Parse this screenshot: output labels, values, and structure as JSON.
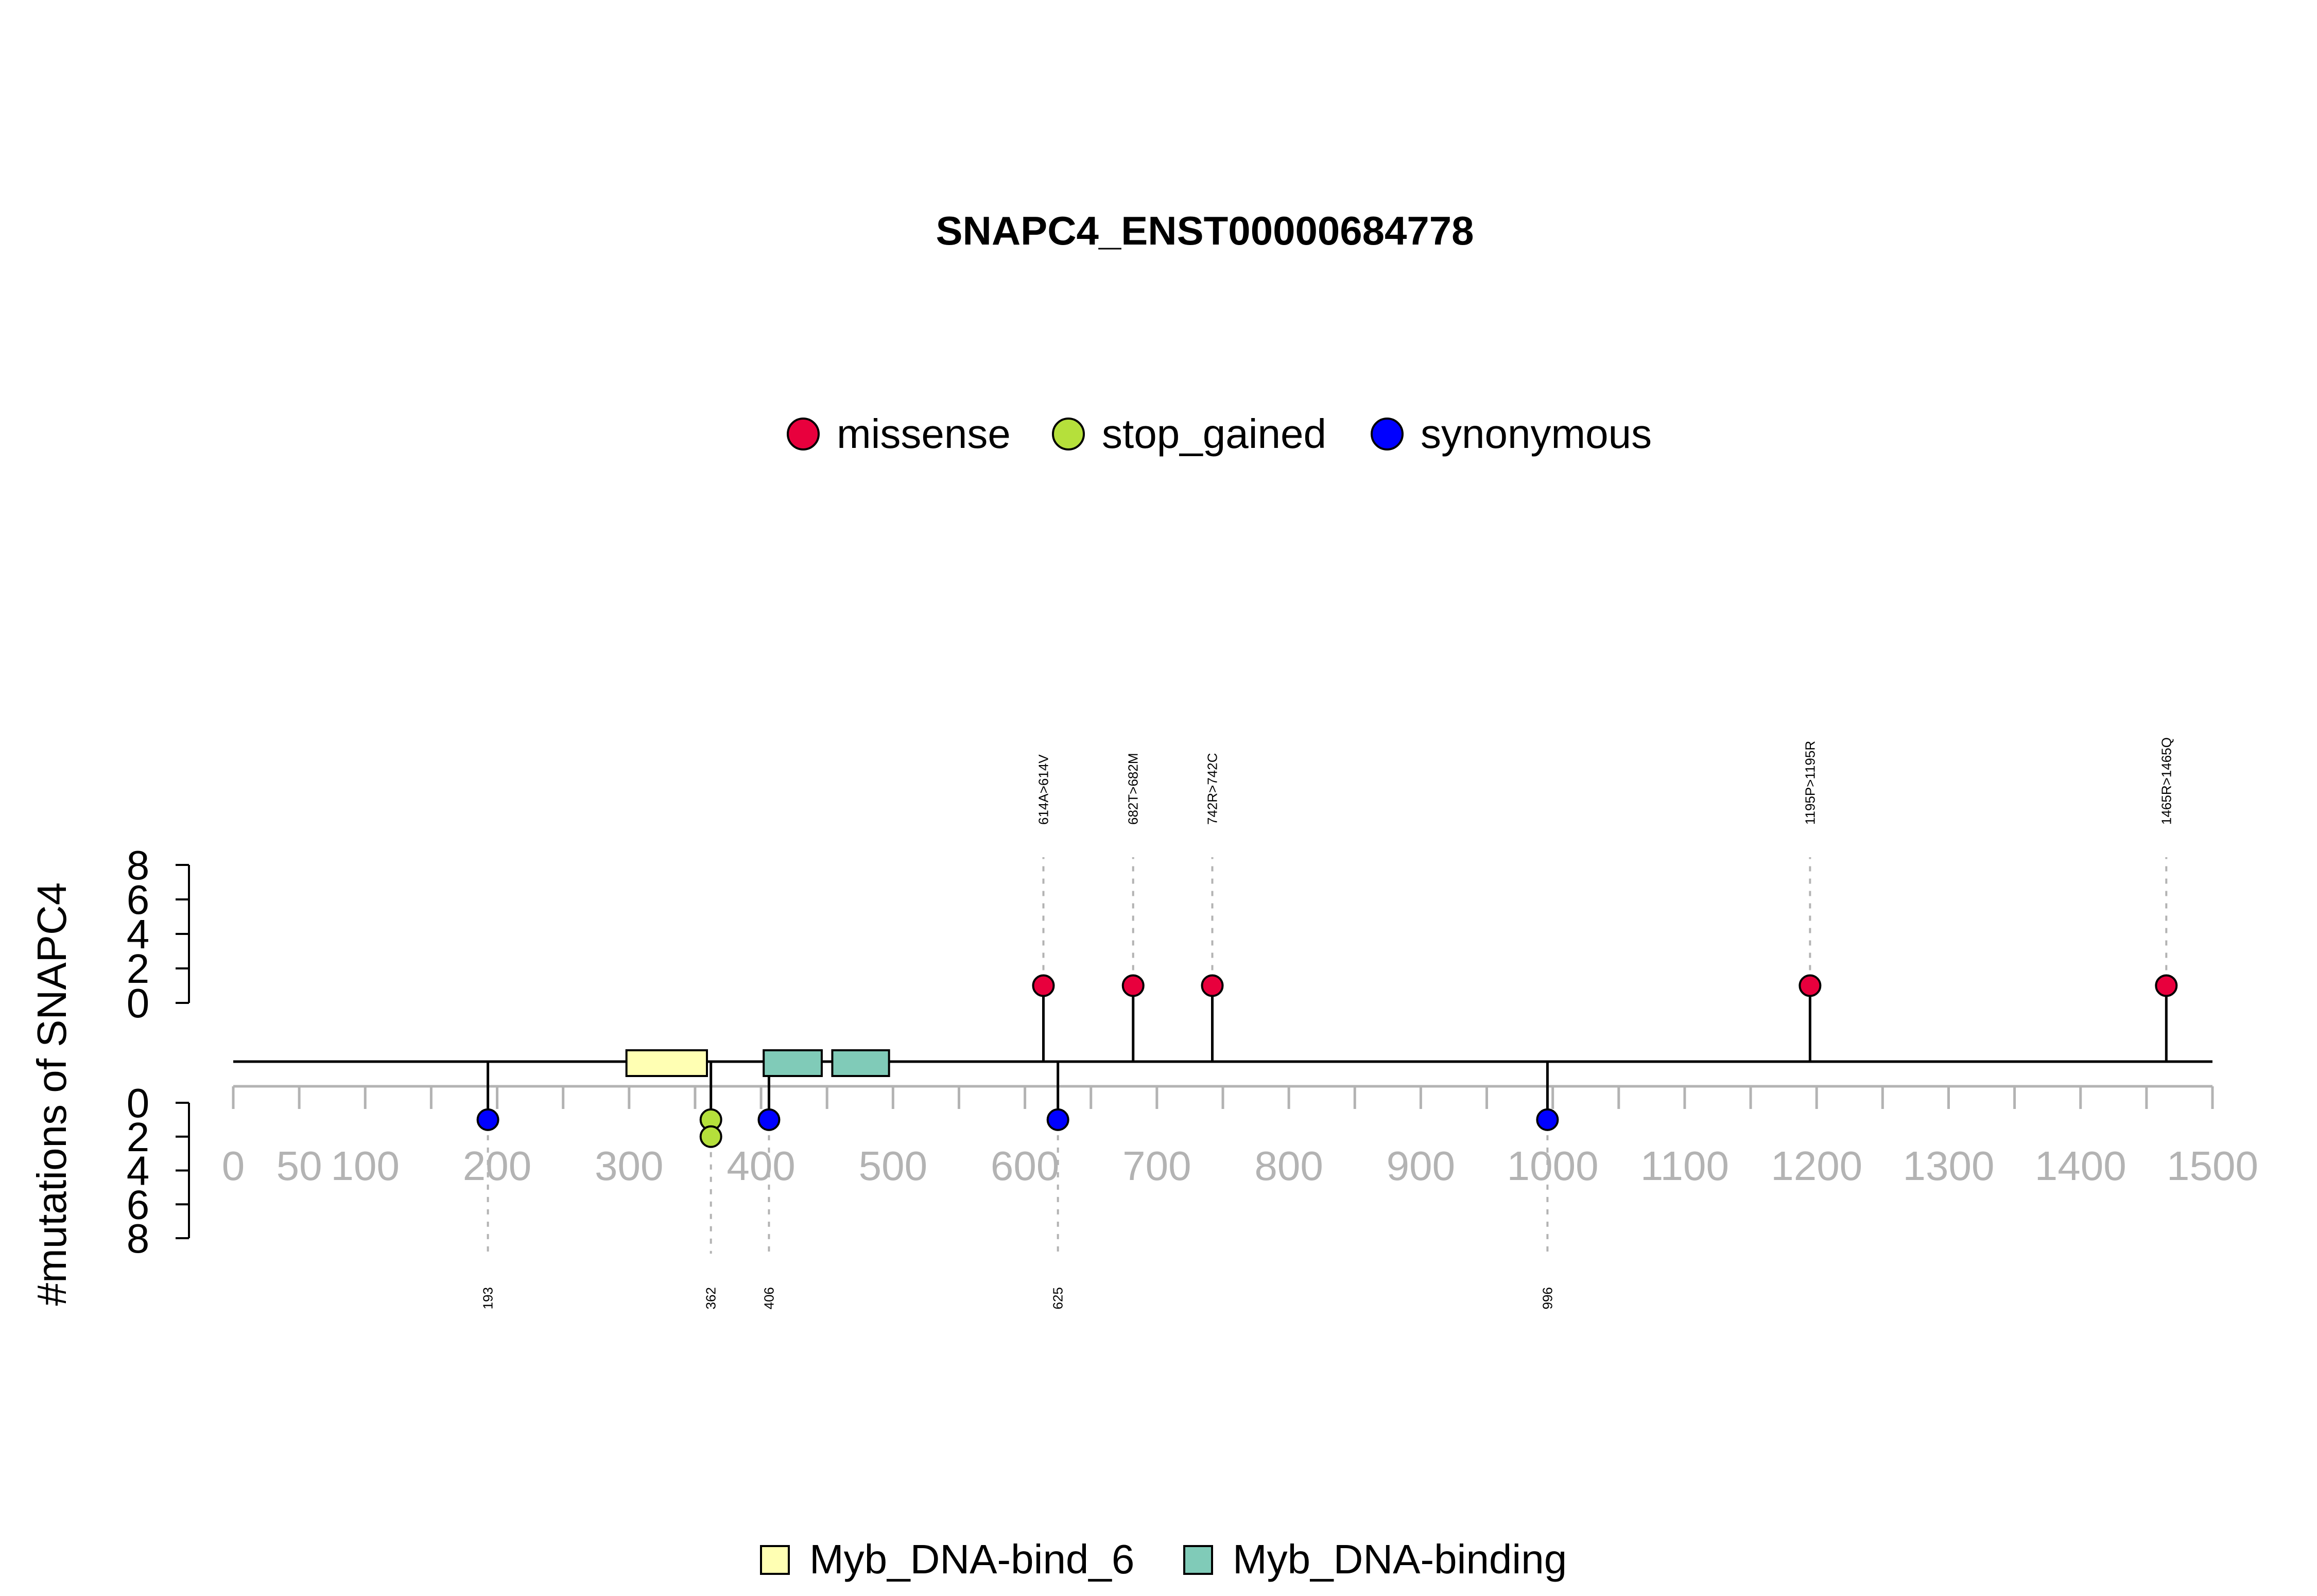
{
  "chart_data": {
    "type": "lollipop",
    "title": "SNAPC4_ENST00000684778",
    "ylabel": "#mutations of SNAPC4",
    "xlim": [
      0,
      1500
    ],
    "x_ticks": [
      0,
      50,
      100,
      150,
      200,
      250,
      300,
      350,
      400,
      450,
      500,
      550,
      600,
      650,
      700,
      750,
      800,
      850,
      900,
      950,
      1000,
      1050,
      1100,
      1150,
      1200,
      1250,
      1300,
      1350,
      1400,
      1450,
      1500
    ],
    "x_tick_labels": [
      {
        "value": 0,
        "label": "0"
      },
      {
        "value": 50,
        "label": "50"
      },
      {
        "value": 100,
        "label": "100"
      },
      {
        "value": 200,
        "label": "200"
      },
      {
        "value": 300,
        "label": "300"
      },
      {
        "value": 400,
        "label": "400"
      },
      {
        "value": 500,
        "label": "500"
      },
      {
        "value": 600,
        "label": "600"
      },
      {
        "value": 700,
        "label": "700"
      },
      {
        "value": 800,
        "label": "800"
      },
      {
        "value": 900,
        "label": "900"
      },
      {
        "value": 1000,
        "label": "1000"
      },
      {
        "value": 1100,
        "label": "1100"
      },
      {
        "value": 1200,
        "label": "1200"
      },
      {
        "value": 1300,
        "label": "1300"
      },
      {
        "value": 1400,
        "label": "1400"
      },
      {
        "value": 1500,
        "label": "1500"
      }
    ],
    "upper_ylim": [
      0,
      8
    ],
    "upper_y_ticks": [
      {
        "value": 0,
        "label": "0"
      },
      {
        "value": 2,
        "label": "2"
      },
      {
        "value": 4,
        "label": "4"
      },
      {
        "value": 6,
        "label": "6"
      },
      {
        "value": 8,
        "label": "8"
      }
    ],
    "lower_ylim": [
      0,
      8
    ],
    "lower_y_ticks": [
      {
        "value": 0,
        "label": "0"
      },
      {
        "value": 2,
        "label": "2"
      },
      {
        "value": 4,
        "label": "4"
      },
      {
        "value": 6,
        "label": "6"
      },
      {
        "value": 8,
        "label": "8"
      }
    ],
    "mutation_legend": [
      {
        "name": "missense",
        "color": "#E8003D"
      },
      {
        "name": "stop_gained",
        "color": "#B5E03B"
      },
      {
        "name": "synonymous",
        "color": "#0000FF"
      }
    ],
    "domain_legend": [
      {
        "name": "Myb_DNA-bind_6",
        "color": "#FFFFB3"
      },
      {
        "name": "Myb_DNA-binding",
        "color": "#80CBB8"
      }
    ],
    "domains": [
      {
        "name": "Myb_DNA-bind_6",
        "start": 298,
        "end": 359,
        "color": "#FFFFB3"
      },
      {
        "name": "Myb_DNA-binding",
        "start": 402,
        "end": 446,
        "color": "#80CBB8"
      },
      {
        "name": "Myb_DNA-binding",
        "start": 454,
        "end": 497,
        "color": "#80CBB8"
      }
    ],
    "upper_mutations": [
      {
        "position": 614,
        "count": 1,
        "type": "missense",
        "label": "614A>614V"
      },
      {
        "position": 682,
        "count": 1,
        "type": "missense",
        "label": "682T>682M"
      },
      {
        "position": 742,
        "count": 1,
        "type": "missense",
        "label": "742R>742C"
      },
      {
        "position": 1195,
        "count": 1,
        "type": "missense",
        "label": "1195P>1195R"
      },
      {
        "position": 1465,
        "count": 1,
        "type": "missense",
        "label": "1465R>1465Q"
      }
    ],
    "lower_mutations": [
      {
        "position": 193,
        "count": 1,
        "types": [
          "synonymous"
        ],
        "label": "193"
      },
      {
        "position": 362,
        "count": 2,
        "types": [
          "stop_gained",
          "stop_gained"
        ],
        "label": "362"
      },
      {
        "position": 406,
        "count": 1,
        "types": [
          "synonymous"
        ],
        "label": "406"
      },
      {
        "position": 625,
        "count": 1,
        "types": [
          "synonymous"
        ],
        "label": "625"
      },
      {
        "position": 996,
        "count": 1,
        "types": [
          "synonymous"
        ],
        "label": "996"
      }
    ],
    "grid": false
  }
}
